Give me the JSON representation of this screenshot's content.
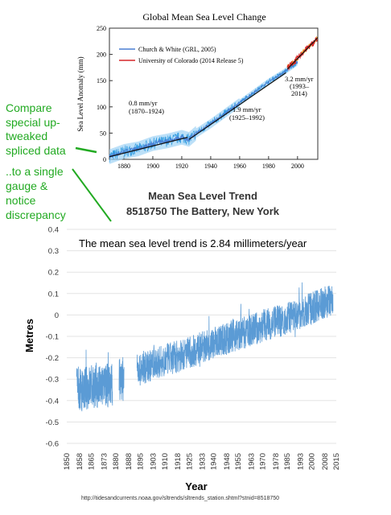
{
  "annotations": {
    "compare_lines": [
      "Compare",
      "special up-",
      "tweaked",
      "spliced data"
    ],
    "single_lines": [
      "..to a single",
      "gauge &",
      "notice",
      "discrepancy"
    ],
    "color": "#22aa22"
  },
  "chart_data": [
    {
      "type": "line",
      "title": "Global Mean Sea Level Change",
      "xlabel": "",
      "ylabel": "Sea Level Anomaly (mm)",
      "xlim": [
        1870,
        2014
      ],
      "ylim": [
        0,
        250
      ],
      "x_ticks": [
        "1880",
        "1900",
        "1920",
        "1940",
        "1960",
        "1980",
        "2000"
      ],
      "y_ticks": [
        "0",
        "50",
        "100",
        "150",
        "200",
        "250"
      ],
      "legend": {
        "placement": "top-left",
        "entries": [
          {
            "label": "Church & White (GRL, 2005)",
            "color": "#4a7fd4"
          },
          {
            "label": "University of Colorado (2014 Release 5)",
            "color": "#d62728"
          }
        ]
      },
      "annotations": [
        {
          "lines": [
            "0.8 mm/yr",
            "(1870–1924)"
          ]
        },
        {
          "lines": [
            "1.9 mm/yr",
            "(1925–1992)"
          ]
        },
        {
          "lines": [
            "3.2 mm/yr",
            "(1993–",
            "2014)"
          ]
        }
      ],
      "series": [
        {
          "name": "Church & White (GRL, 2005)",
          "color": "#4a7fd4",
          "x": [
            1870,
            1880,
            1890,
            1900,
            1910,
            1920,
            1925,
            1930,
            1940,
            1950,
            1960,
            1970,
            1980,
            1990,
            2000
          ],
          "values": [
            5,
            15,
            20,
            30,
            35,
            42,
            38,
            50,
            68,
            88,
            108,
            128,
            148,
            165,
            185
          ]
        },
        {
          "name": "University of Colorado (2014 Release 5)",
          "color": "#d62728",
          "x": [
            1993,
            1996,
            2000,
            2004,
            2008,
            2011,
            2014
          ],
          "values": [
            175,
            182,
            192,
            205,
            215,
            222,
            232
          ]
        }
      ]
    },
    {
      "type": "line",
      "title": "Mean Sea Level Trend",
      "subtitle": "8518750 The Battery, New York",
      "annotation": "The mean sea level trend is 2.84 millimeters/year",
      "xlabel": "Year",
      "ylabel": "Metres",
      "xlim": [
        1850,
        2015
      ],
      "ylim": [
        -0.6,
        0.4
      ],
      "x_ticks": [
        "1850",
        "1858",
        "1865",
        "1873",
        "1880",
        "1888",
        "1895",
        "1903",
        "1910",
        "1918",
        "1925",
        "1933",
        "1940",
        "1948",
        "1955",
        "1963",
        "1970",
        "1978",
        "1985",
        "1993",
        "2000",
        "2008",
        "2015"
      ],
      "y_ticks": [
        "0.4",
        "0.3",
        "0.2",
        "0.1",
        "0",
        "-0.1",
        "-0.2",
        "-0.3",
        "-0.4",
        "-0.5",
        "-0.6"
      ],
      "series": [
        {
          "color": "#5b9bd5",
          "segments": [
            {
              "x": [
                1856,
                1860,
                1865,
                1870,
                1875,
                1878
              ],
              "values": [
                -0.33,
                -0.35,
                -0.33,
                -0.34,
                -0.33,
                -0.32
              ]
            },
            {
              "x": [
                1882,
                1885
              ],
              "values": [
                -0.3,
                -0.3
              ]
            },
            {
              "x": [
                1893,
                1900,
                1910,
                1920,
                1930,
                1940,
                1950,
                1960,
                1970,
                1980,
                1990,
                2000,
                2008,
                2013
              ],
              "values": [
                -0.26,
                -0.24,
                -0.21,
                -0.19,
                -0.16,
                -0.13,
                -0.1,
                -0.08,
                -0.05,
                -0.03,
                0.0,
                0.03,
                0.06,
                0.07
              ]
            }
          ]
        }
      ],
      "source": "http://tidesandcurrents.noaa.gov/sltrends/sltrends_station.shtml?stnid=8518750"
    }
  ]
}
